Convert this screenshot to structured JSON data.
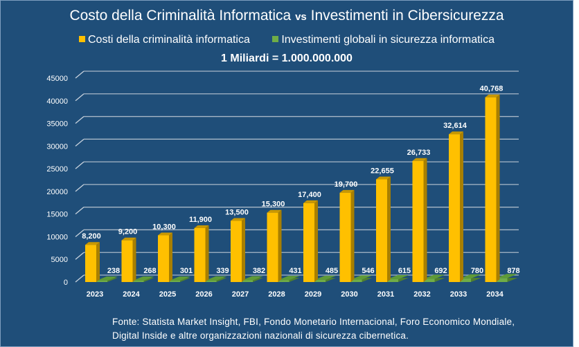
{
  "title_part1": "Costo della Criminalità Informatica",
  "title_vs": "vs",
  "title_part2": "Investimenti in  Cibersicurezza",
  "unit_note": "1 Miliardi = 1.000.000.000",
  "source_line1": "Fonte: Statista Market Insight, FBI, Fondo Monetario Internacional, Foro Economico Mondiale,",
  "source_line2": "Digital Inside e altre organizzazioni nazionali di sicurezza cibernetica.",
  "colors": {
    "background": "#1F4E79",
    "cost": "#FFC000",
    "investment": "#70AD47"
  },
  "chart_data": {
    "type": "bar",
    "style": "3d-clustered",
    "categories": [
      "2023",
      "2024",
      "2025",
      "2026",
      "2027",
      "2028",
      "2029",
      "2030",
      "2031",
      "2032",
      "2033",
      "2034"
    ],
    "series": [
      {
        "name": "Costi della criminalità informatica",
        "color": "#FFC000",
        "values": [
          8200,
          9200,
          10300,
          11900,
          13500,
          15300,
          17400,
          19700,
          22655,
          26733,
          32614,
          40768
        ],
        "labels": [
          "8,200",
          "9,200",
          "10,300",
          "11,900",
          "13,500",
          "15,300",
          "17,400",
          "19,700",
          "22,655",
          "26,733",
          "32,614",
          "40,768"
        ]
      },
      {
        "name": "Investimenti globali in sicurezza informatica",
        "color": "#70AD47",
        "values": [
          238,
          268,
          301,
          339,
          382,
          431,
          485,
          546,
          615,
          692,
          780,
          878
        ],
        "labels": [
          "238",
          "268",
          "301",
          "339",
          "382",
          "431",
          "485",
          "546",
          "615",
          "692",
          "780",
          "878"
        ]
      }
    ],
    "ylim": [
      0,
      45000
    ],
    "yticks": [
      "0",
      "5000",
      "10000",
      "15000",
      "20000",
      "25000",
      "30000",
      "35000",
      "40000",
      "45000"
    ],
    "grid": true,
    "legend": "top"
  }
}
